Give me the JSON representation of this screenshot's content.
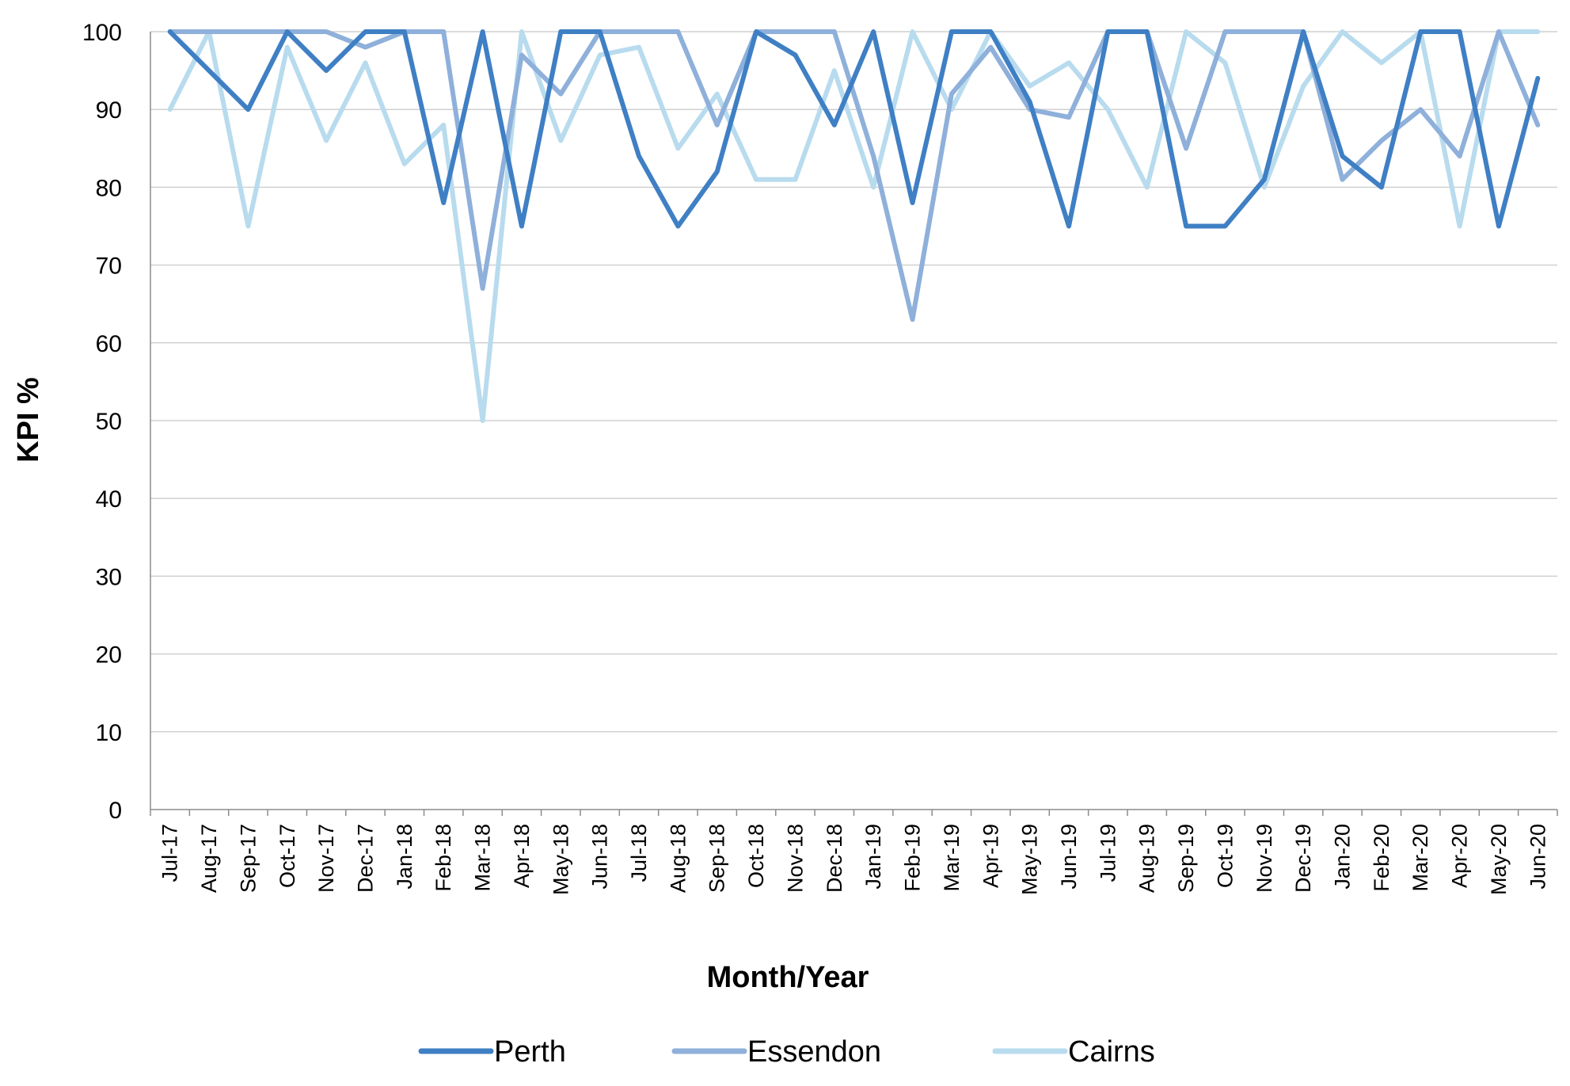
{
  "chart_data": {
    "type": "line",
    "xlabel": "Month/Year",
    "ylabel": "KPI %",
    "ylim": [
      0,
      100
    ],
    "yticks": [
      "0",
      "10",
      "20",
      "30",
      "40",
      "50",
      "60",
      "70",
      "80",
      "90",
      "100"
    ],
    "grid": true,
    "legend_position": "bottom",
    "categories": [
      "Jul-17",
      "Aug-17",
      "Sep-17",
      "Oct-17",
      "Nov-17",
      "Dec-17",
      "Jan-18",
      "Feb-18",
      "Mar-18",
      "Apr-18",
      "May-18",
      "Jun-18",
      "Jul-18",
      "Aug-18",
      "Sep-18",
      "Oct-18",
      "Nov-18",
      "Dec-18",
      "Jan-19",
      "Feb-19",
      "Mar-19",
      "Apr-19",
      "May-19",
      "Jun-19",
      "Jul-19",
      "Aug-19",
      "Sep-19",
      "Oct-19",
      "Nov-19",
      "Dec-19",
      "Jan-20",
      "Feb-20",
      "Mar-20",
      "Apr-20",
      "May-20",
      "Jun-20"
    ],
    "series": [
      {
        "name": "Perth",
        "color": "#3f7fc4",
        "values": [
          100,
          95,
          90,
          100,
          95,
          100,
          100,
          78,
          100,
          75,
          100,
          100,
          84,
          75,
          82,
          100,
          97,
          88,
          100,
          78,
          100,
          100,
          91,
          75,
          100,
          100,
          75,
          75,
          81,
          100,
          84,
          80,
          100,
          100,
          75,
          94
        ]
      },
      {
        "name": "Essendon",
        "color": "#8eb0da",
        "values": [
          100,
          100,
          100,
          100,
          100,
          98,
          100,
          100,
          67,
          97,
          92,
          100,
          100,
          100,
          88,
          100,
          100,
          100,
          84,
          63,
          92,
          98,
          90,
          89,
          100,
          100,
          85,
          100,
          100,
          100,
          81,
          86,
          90,
          84,
          100,
          88
        ]
      },
      {
        "name": "Cairns",
        "color": "#b8dbee",
        "values": [
          90,
          100,
          75,
          98,
          86,
          96,
          83,
          88,
          50,
          100,
          86,
          97,
          98,
          85,
          92,
          81,
          81,
          95,
          80,
          100,
          90,
          100,
          93,
          96,
          90,
          80,
          100,
          96,
          80,
          93,
          100,
          96,
          100,
          75,
          100,
          100
        ]
      }
    ]
  }
}
